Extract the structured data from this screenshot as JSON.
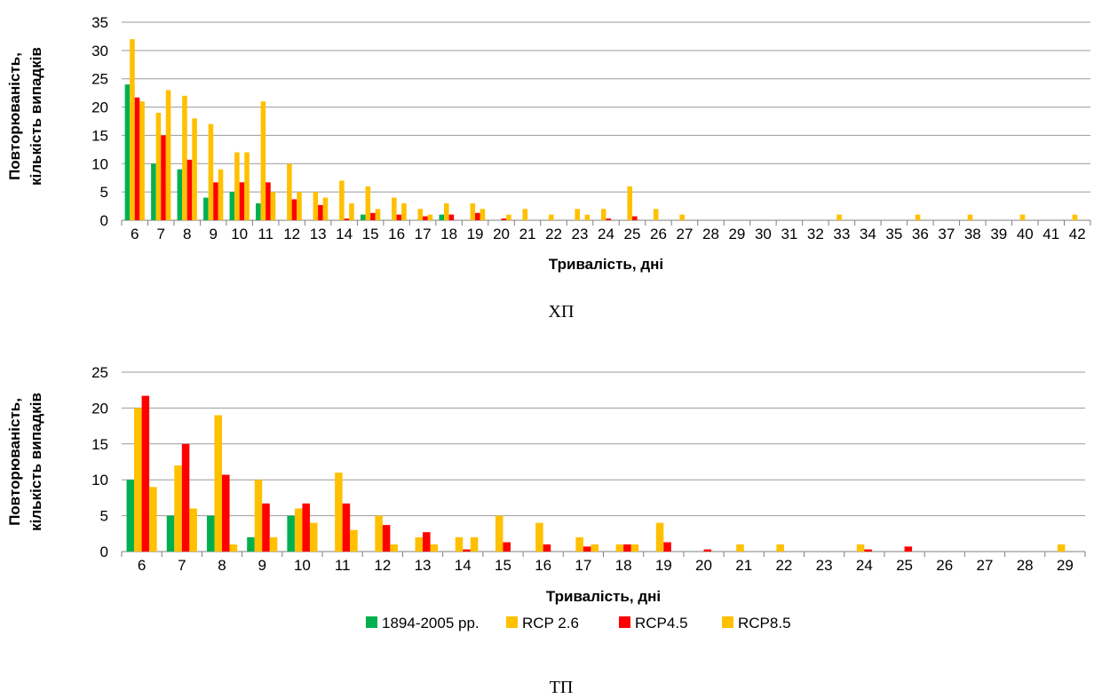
{
  "colors": {
    "1894-2005": "#00B050",
    "RCP 2.6": "#FFC000",
    "RCP4.5": "#FF0000",
    "RCP8.5": "#FFC000",
    "grid": "#9A9A9A",
    "axis": "#7F7F7F"
  },
  "legend": {
    "position": "bottom",
    "items": [
      {
        "name": "1894-2005 рр.",
        "color_key": "1894-2005"
      },
      {
        "name": "RCP 2.6",
        "color_key": "RCP 2.6"
      },
      {
        "name": "RCP4.5",
        "color_key": "RCP4.5"
      },
      {
        "name": "RCP8.5",
        "color_key": "RCP8.5"
      }
    ]
  },
  "chart_data": [
    {
      "type": "bar",
      "caption": "ХП",
      "xlabel": "Тривалість, дні",
      "ylabel_line1": "Повторюваність,",
      "ylabel_line2": "кількість випадків",
      "ylim": [
        0,
        35
      ],
      "yticks": [
        0,
        5,
        10,
        15,
        20,
        25,
        30,
        35
      ],
      "grid": true,
      "categories": [
        "6",
        "7",
        "8",
        "9",
        "10",
        "11",
        "12",
        "13",
        "14",
        "15",
        "16",
        "17",
        "18",
        "19",
        "20",
        "21",
        "22",
        "23",
        "24",
        "25",
        "26",
        "27",
        "28",
        "29",
        "30",
        "31",
        "32",
        "33",
        "34",
        "35",
        "36",
        "37",
        "38",
        "39",
        "40",
        "41",
        "42"
      ],
      "series": [
        {
          "name": "1894-2005 рр.",
          "color_key": "1894-2005",
          "values": [
            24,
            10,
            9,
            4,
            5,
            3,
            0,
            0,
            0,
            1,
            0,
            0,
            1,
            0,
            0,
            0,
            0,
            0,
            0,
            0,
            0,
            0,
            0,
            0,
            0,
            0,
            0,
            0,
            0,
            0,
            0,
            0,
            0,
            0,
            0,
            0,
            0
          ]
        },
        {
          "name": "RCP 2.6",
          "color_key": "RCP 2.6",
          "values": [
            32,
            19,
            22,
            17,
            12,
            21,
            10,
            5,
            7,
            6,
            4,
            2,
            3,
            3,
            0,
            2,
            1,
            2,
            2,
            6,
            2,
            1,
            0,
            0,
            0,
            0,
            0,
            1,
            0,
            0,
            1,
            0,
            1,
            0,
            1,
            0,
            1
          ]
        },
        {
          "name": "RCP4.5",
          "color_key": "RCP4.5",
          "values": [
            21.7,
            15,
            10.7,
            6.7,
            6.7,
            6.7,
            3.7,
            2.7,
            0.3,
            1.3,
            1,
            0.7,
            1,
            1.3,
            0.3,
            0,
            0,
            0,
            0.3,
            0.7,
            0,
            0,
            0,
            0,
            0,
            0,
            0,
            0,
            0,
            0,
            0,
            0,
            0,
            0,
            0,
            0,
            0
          ]
        },
        {
          "name": "RCP8.5",
          "color_key": "RCP8.5",
          "values": [
            21,
            23,
            18,
            9,
            12,
            5,
            5,
            4,
            3,
            2,
            3,
            1,
            0,
            2,
            1,
            0,
            0,
            1,
            0,
            0,
            0,
            0,
            0,
            0,
            0,
            0,
            0,
            0,
            0,
            0,
            0,
            0,
            0,
            0,
            0,
            0,
            0
          ]
        }
      ]
    },
    {
      "type": "bar",
      "caption": "ТП",
      "xlabel": "Тривалість, дні",
      "ylabel_line1": "Повторюваність,",
      "ylabel_line2": "кількість випадків",
      "ylim": [
        0,
        25
      ],
      "yticks": [
        0,
        5,
        10,
        15,
        20,
        25
      ],
      "grid": true,
      "categories": [
        "6",
        "7",
        "8",
        "9",
        "10",
        "11",
        "12",
        "13",
        "14",
        "15",
        "16",
        "17",
        "18",
        "19",
        "20",
        "21",
        "22",
        "23",
        "24",
        "25",
        "26",
        "27",
        "28",
        "29"
      ],
      "series": [
        {
          "name": "1894-2005 рр.",
          "color_key": "1894-2005",
          "values": [
            10,
            5,
            5,
            2,
            5,
            0,
            0,
            0,
            0,
            0,
            0,
            0,
            0,
            0,
            0,
            0,
            0,
            0,
            0,
            0,
            0,
            0,
            0,
            0
          ]
        },
        {
          "name": "RCP 2.6",
          "color_key": "RCP 2.6",
          "values": [
            20,
            12,
            19,
            10,
            6,
            11,
            5,
            2,
            2,
            5,
            4,
            2,
            1,
            4,
            0,
            1,
            1,
            0,
            1,
            0,
            0,
            0,
            0,
            1
          ]
        },
        {
          "name": "RCP4.5",
          "color_key": "RCP4.5",
          "values": [
            21.7,
            15,
            10.7,
            6.7,
            6.7,
            6.7,
            3.7,
            2.7,
            0.3,
            1.3,
            1,
            0.7,
            1,
            1.3,
            0.3,
            0,
            0,
            0,
            0.3,
            0.7,
            0,
            0,
            0,
            0
          ]
        },
        {
          "name": "RCP8.5",
          "color_key": "RCP8.5",
          "values": [
            9,
            6,
            1,
            2,
            4,
            3,
            1,
            1,
            2,
            0,
            0,
            1,
            1,
            0,
            0,
            0,
            0,
            0,
            0,
            0,
            0,
            0,
            0,
            0
          ]
        }
      ]
    }
  ]
}
